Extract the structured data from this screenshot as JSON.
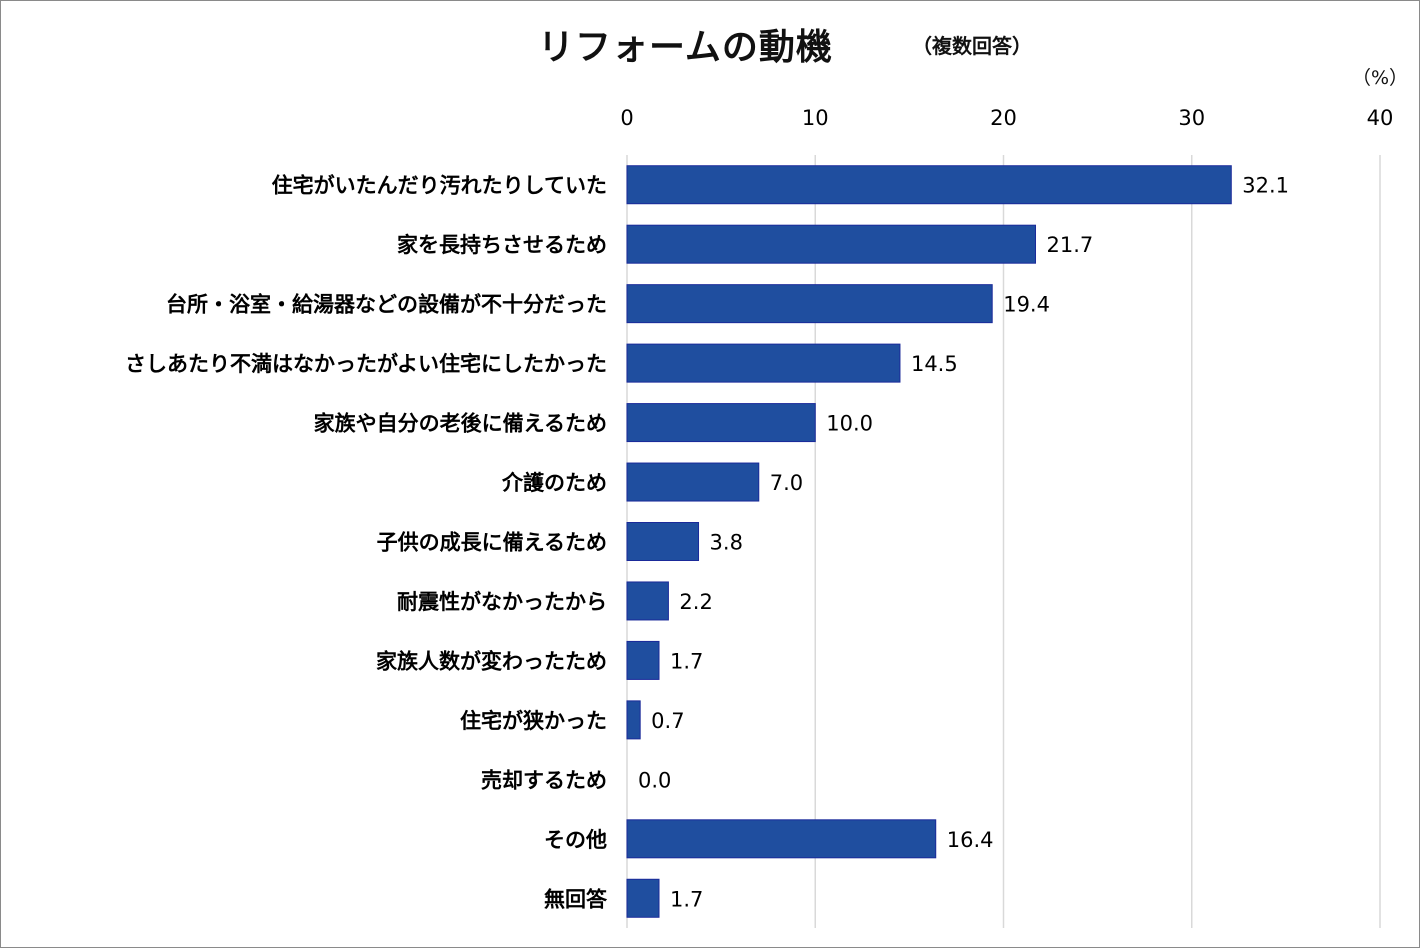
{
  "chart_data": {
    "type": "bar",
    "orientation": "horizontal",
    "title": "リフォームの動機",
    "subtitle": "（複数回答）",
    "unit_label": "（%）",
    "xlim": [
      0,
      40
    ],
    "x_ticks": [
      "0",
      "10",
      "20",
      "30",
      "40"
    ],
    "grid": true,
    "bar_color": "#1f4e9f",
    "bar_border_color": "#1a2a9a",
    "categories": [
      "住宅がいたんだり汚れたりしていた",
      "家を長持ちさせるため",
      "台所・浴室・給湯器などの設備が不十分だった",
      "さしあたり不満はなかったがよい住宅にしたかった",
      "家族や自分の老後に備えるため",
      "介護のため",
      "子供の成長に備えるため",
      "耐震性がなかったから",
      "家族人数が変わったため",
      "住宅が狭かった",
      "売却するため",
      "その他",
      "無回答"
    ],
    "values": [
      32.1,
      21.7,
      19.4,
      14.5,
      10.0,
      7.0,
      3.8,
      2.2,
      1.7,
      0.7,
      0.0,
      16.4,
      1.7
    ],
    "value_labels": [
      "32.1",
      "21.7",
      "19.4",
      "14.5",
      "10.0",
      "7.0",
      "3.8",
      "2.2",
      "1.7",
      "0.7",
      "0.0",
      "16.4",
      "1.7"
    ]
  }
}
